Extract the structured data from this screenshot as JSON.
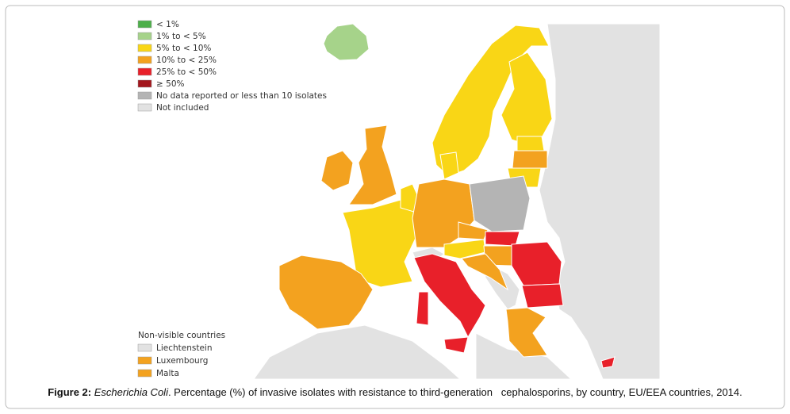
{
  "legend": {
    "items": [
      {
        "label": "< 1%",
        "color": "#4daf4a"
      },
      {
        "label": "1% to < 5%",
        "color": "#a6d38a"
      },
      {
        "label": "5% to < 10%",
        "color": "#f9d616"
      },
      {
        "label": "10% to < 25%",
        "color": "#f3a21f"
      },
      {
        "label": "25% to < 50%",
        "color": "#e8202a"
      },
      {
        "label": "≥ 50%",
        "color": "#a3161c"
      },
      {
        "label": "No data reported or less than 10 isolates",
        "color": "#b4b4b4"
      },
      {
        "label": "Not included",
        "color": "#e2e2e2"
      }
    ]
  },
  "non_visible": {
    "title": "Non-visible countries",
    "items": [
      {
        "label": "Liechtenstein",
        "color": "#e2e2e2"
      },
      {
        "label": "Luxembourg",
        "color": "#f3a21f"
      },
      {
        "label": "Malta",
        "color": "#f3a21f"
      }
    ]
  },
  "caption": {
    "label": "Figure 2:",
    "organism": "Escherichia Coli",
    "text": ". Percentage (%) of invasive isolates with resistance to third-generation   cephalosporins, by country, EU/EEA countries, 2014."
  }
}
